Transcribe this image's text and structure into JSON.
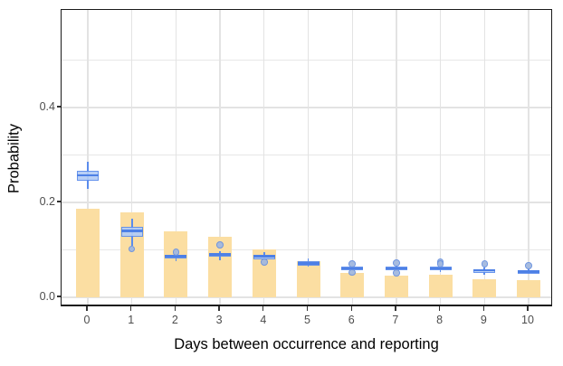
{
  "chart_data": {
    "type": "bar+boxplot",
    "title": "",
    "xlabel": "Days between occurrence and reporting",
    "ylabel": "Probability",
    "categories": [
      "0",
      "1",
      "2",
      "3",
      "4",
      "5",
      "6",
      "7",
      "8",
      "9",
      "10"
    ],
    "y_ticks": [
      {
        "label": "0.0",
        "value": 0.0
      },
      {
        "label": "0.2",
        "value": 0.2
      },
      {
        "label": "0.4",
        "value": 0.4
      }
    ],
    "ylim": [
      0.0,
      0.605
    ],
    "gridlines_y_minor": [
      0.1,
      0.3,
      0.5
    ],
    "gridlines_y_major": [
      0.2,
      0.4
    ],
    "grid": "on",
    "legend": "none",
    "series": [
      {
        "name": "empirical-probability-bars",
        "type": "bar",
        "values": [
          0.186,
          0.179,
          0.14,
          0.127,
          0.101,
          0.077,
          0.052,
          0.046,
          0.048,
          0.038,
          0.037
        ]
      },
      {
        "name": "model-probability-boxplots",
        "type": "boxplot",
        "stats": [
          {
            "day": "0",
            "whisker_low": 0.228,
            "q1": 0.245,
            "median": 0.257,
            "q3": 0.267,
            "whisker_high": 0.285,
            "outliers": []
          },
          {
            "day": "1",
            "whisker_low": 0.109,
            "q1": 0.128,
            "median": 0.14,
            "q3": 0.149,
            "whisker_high": 0.166,
            "outliers": [
              0.102
            ]
          },
          {
            "day": "2",
            "whisker_low": 0.077,
            "q1": 0.084,
            "median": 0.086,
            "q3": 0.089,
            "whisker_high": 0.091,
            "outliers": [
              0.095
            ]
          },
          {
            "day": "3",
            "whisker_low": 0.078,
            "q1": 0.088,
            "median": 0.091,
            "q3": 0.094,
            "whisker_high": 0.097,
            "outliers": [
              0.11
            ]
          },
          {
            "day": "4",
            "whisker_low": 0.079,
            "q1": 0.083,
            "median": 0.086,
            "q3": 0.088,
            "whisker_high": 0.095,
            "outliers": [
              0.074
            ]
          },
          {
            "day": "5",
            "whisker_low": 0.064,
            "q1": 0.066,
            "median": 0.072,
            "q3": 0.077,
            "whisker_high": 0.081,
            "outliers": []
          },
          {
            "day": "6",
            "whisker_low": 0.057,
            "q1": 0.059,
            "median": 0.061,
            "q3": 0.064,
            "whisker_high": 0.066,
            "outliers": [
              0.07,
              0.052
            ]
          },
          {
            "day": "7",
            "whisker_low": 0.056,
            "q1": 0.058,
            "median": 0.061,
            "q3": 0.065,
            "whisker_high": 0.067,
            "outliers": [
              0.072,
              0.051
            ]
          },
          {
            "day": "8",
            "whisker_low": 0.054,
            "q1": 0.059,
            "median": 0.061,
            "q3": 0.064,
            "whisker_high": 0.066,
            "outliers": [
              0.074,
              0.071
            ]
          },
          {
            "day": "9",
            "whisker_low": 0.047,
            "q1": 0.054,
            "median": 0.057,
            "q3": 0.059,
            "whisker_high": 0.062,
            "outliers": [
              0.07
            ]
          },
          {
            "day": "10",
            "whisker_low": 0.049,
            "q1": 0.053,
            "median": 0.055,
            "q3": 0.058,
            "whisker_high": 0.06,
            "outliers": [
              0.067
            ]
          }
        ]
      }
    ],
    "colors": {
      "bar_fill": "#FBDEA2",
      "box_border": "#5B8CEC",
      "box_fill": "#8FB4F2",
      "median": "#4D80E6",
      "outlier_fill": "#A3B9DF",
      "outlier_border": "#6A92E0",
      "gridline": "#E7E7E7",
      "axis_text": "#4D4D4D",
      "axis_title": "#000000",
      "panel_border": "#1A1A1A",
      "background": "#FFFFFF"
    }
  }
}
